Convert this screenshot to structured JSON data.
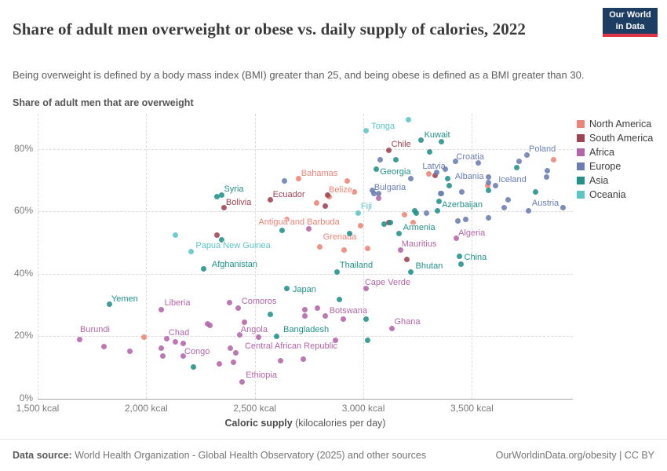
{
  "header": {
    "title": "Share of adult men overweight or obese vs. daily supply of calories, 2022",
    "subtitle": "Being overweight is defined by a body mass index (BMI) greater than 25, and being obese is defined as a BMI greater than 30.",
    "logo_line1": "Our World",
    "logo_line2": "in Data"
  },
  "axis": {
    "y_title": "Share of adult men that are overweight",
    "x_title_bold": "Caloric supply",
    "x_title_rest": " (kilocalories per day)"
  },
  "footer": {
    "source_bold": "Data source:",
    "source_rest": " World Health Organization - Global Health Observatory (2025) and other sources",
    "link": "OurWorldinData.org/obesity | CC BY"
  },
  "legend": [
    {
      "label": "North America",
      "color": "#ec8475"
    },
    {
      "label": "South America",
      "color": "#9e4351"
    },
    {
      "label": "Africa",
      "color": "#b465a8"
    },
    {
      "label": "Europe",
      "color": "#6a7cb2"
    },
    {
      "label": "Asia",
      "color": "#21918a"
    },
    {
      "label": "Oceania",
      "color": "#5cc5c6"
    }
  ],
  "chart_data": {
    "type": "scatter",
    "title": "Share of adult men overweight or obese vs. daily supply of calories, 2022",
    "xlabel": "Caloric supply (kilocalories per day)",
    "ylabel": "Share of adult men that are overweight",
    "x_unit": "kcal",
    "y_unit": "%",
    "xlim": [
      1500,
      3970
    ],
    "ylim": [
      0,
      91
    ],
    "grid": true,
    "legend_position": "right",
    "x_ticks": [
      {
        "label": "1,500 kcal",
        "kcal": 1500
      },
      {
        "label": "2,000 kcal",
        "kcal": 2000
      },
      {
        "label": "2,500 kcal",
        "kcal": 2500
      },
      {
        "label": "3,000 kcal",
        "kcal": 3000
      },
      {
        "label": "3,500 kcal",
        "kcal": 3500
      }
    ],
    "y_ticks": [
      {
        "label": "0%",
        "pct": 0
      },
      {
        "label": "20%",
        "pct": 20
      },
      {
        "label": "40%",
        "pct": 40
      },
      {
        "label": "60%",
        "pct": 60
      },
      {
        "label": "80%",
        "pct": 80
      }
    ],
    "series": [
      {
        "name": "North America",
        "color": "#ec8475",
        "points": [
          {
            "country": "Bahamas",
            "kcal": 2700,
            "pct": 70.4,
            "dx": 27,
            "dy": -7
          },
          {
            "country": "Belize",
            "kcal": 2960,
            "pct": 66.1,
            "dx": -18,
            "dy": -3
          },
          {
            "country": "Antigua and Barbuda",
            "kcal": 2646,
            "pct": 57.3,
            "dx": 16,
            "dy": 3
          },
          {
            "country": "Grenada",
            "kcal": 2801,
            "pct": 48.7,
            "dx": 25,
            "dy": -12
          },
          {
            "kcal": 3878,
            "pct": 76.6
          },
          {
            "kcal": 3574,
            "pct": 68.1
          },
          {
            "kcal": 3300,
            "pct": 71.9
          },
          {
            "kcal": 3191,
            "pct": 59.0
          },
          {
            "kcal": 3228,
            "pct": 56.5
          },
          {
            "kcal": 2986,
            "pct": 55.3
          },
          {
            "kcal": 2913,
            "pct": 47.5
          },
          {
            "kcal": 2783,
            "pct": 62.8
          },
          {
            "kcal": 1988,
            "pct": 19.6
          },
          {
            "kcal": 2841,
            "pct": 64.6
          },
          {
            "kcal": 2924,
            "pct": 69.8
          },
          {
            "kcal": 3018,
            "pct": 48.0
          }
        ]
      },
      {
        "name": "South America",
        "color": "#9e4351",
        "points": [
          {
            "country": "Chile",
            "kcal": 3116,
            "pct": 79.6,
            "dx": 16,
            "dy": -7
          },
          {
            "country": "Ecuador",
            "kcal": 2570,
            "pct": 63.8,
            "dx": 24,
            "dy": -6
          },
          {
            "country": "Bolivia",
            "kcal": 2357,
            "pct": 61.3,
            "dx": 19,
            "dy": -6
          },
          {
            "kcal": 2834,
            "pct": 65.1
          },
          {
            "kcal": 2826,
            "pct": 61.8
          },
          {
            "kcal": 3119,
            "pct": 56.5
          },
          {
            "kcal": 3202,
            "pct": 44.5
          },
          {
            "kcal": 3329,
            "pct": 71.6
          },
          {
            "kcal": 2324,
            "pct": 52.5
          }
        ]
      },
      {
        "name": "Africa",
        "color": "#b465a8",
        "points": [
          {
            "country": "Algeria",
            "kcal": 3427,
            "pct": 51.3,
            "dx": 20,
            "dy": -7
          },
          {
            "country": "Mauritius",
            "kcal": 3170,
            "pct": 47.5,
            "dx": 24,
            "dy": -8
          },
          {
            "country": "Cape Verde",
            "kcal": 3014,
            "pct": 35.2,
            "dx": 27,
            "dy": -8
          },
          {
            "country": "Ghana",
            "kcal": 3130,
            "pct": 22.6,
            "dx": 20,
            "dy": -8
          },
          {
            "country": "Botswana",
            "kcal": 2909,
            "pct": 25.4,
            "dx": 6,
            "dy": -11
          },
          {
            "country": "Comoros",
            "kcal": 2422,
            "pct": 28.9,
            "dx": 27,
            "dy": -9
          },
          {
            "country": "Liberia",
            "kcal": 2071,
            "pct": 28.6,
            "dx": 20,
            "dy": -8
          },
          {
            "country": "Chad",
            "kcal": 2093,
            "pct": 19.1,
            "dx": 16,
            "dy": -8
          },
          {
            "country": "Burundi",
            "kcal": 1695,
            "pct": 18.9,
            "dx": 19,
            "dy": -13
          },
          {
            "country": "Congo",
            "kcal": 2169,
            "pct": 13.6,
            "dx": 18,
            "dy": -6
          },
          {
            "country": "Angola",
            "kcal": 2432,
            "pct": 20.4,
            "dx": 18,
            "dy": -7
          },
          {
            "country": "Central African Republic",
            "kcal": 2389,
            "pct": 16.3,
            "dx": 77,
            "dy": -2
          },
          {
            "country": "Ethiopia",
            "kcal": 2440,
            "pct": 5.3,
            "dx": 25,
            "dy": -9
          },
          {
            "kcal": 1804,
            "pct": 16.8
          },
          {
            "kcal": 1923,
            "pct": 15.1
          },
          {
            "kcal": 2071,
            "pct": 16.3
          },
          {
            "kcal": 2075,
            "pct": 13.8
          },
          {
            "kcal": 2136,
            "pct": 18.1
          },
          {
            "kcal": 2172,
            "pct": 17.8
          },
          {
            "kcal": 2284,
            "pct": 24.1
          },
          {
            "kcal": 2292,
            "pct": 23.6
          },
          {
            "kcal": 2335,
            "pct": 11.3
          },
          {
            "kcal": 2400,
            "pct": 11.8
          },
          {
            "kcal": 2620,
            "pct": 12.3
          },
          {
            "kcal": 2722,
            "pct": 12.6
          },
          {
            "kcal": 2873,
            "pct": 18.8
          },
          {
            "kcal": 2732,
            "pct": 28.6
          },
          {
            "kcal": 2732,
            "pct": 26.4
          },
          {
            "kcal": 2790,
            "pct": 28.9
          },
          {
            "kcal": 2823,
            "pct": 26.4
          },
          {
            "kcal": 2411,
            "pct": 14.6
          },
          {
            "kcal": 2385,
            "pct": 30.7
          },
          {
            "kcal": 2454,
            "pct": 24.6
          },
          {
            "kcal": 2519,
            "pct": 19.8
          },
          {
            "kcal": 2747,
            "pct": 54.3
          },
          {
            "kcal": 3069,
            "pct": 64.1
          }
        ]
      },
      {
        "name": "Europe",
        "color": "#6a7cb2",
        "points": [
          {
            "country": "Poland",
            "kcal": 3752,
            "pct": 78.1,
            "dx": 20,
            "dy": -7
          },
          {
            "country": "Croatia",
            "kcal": 3528,
            "pct": 75.4,
            "dx": -10,
            "dy": -8
          },
          {
            "country": "Latvia",
            "kcal": 3336,
            "pct": 72.4,
            "dx": -3,
            "dy": -8
          },
          {
            "country": "Albania",
            "kcal": 3575,
            "pct": 70.9,
            "dx": -24,
            "dy": -1
          },
          {
            "country": "Iceland",
            "kcal": 3578,
            "pct": 69.1,
            "dx": 30,
            "dy": -4
          },
          {
            "country": "Bulgaria",
            "kcal": 3072,
            "pct": 65.6,
            "dx": 14,
            "dy": -8
          },
          {
            "country": "Austria",
            "kcal": 3918,
            "pct": 61.1,
            "dx": -22,
            "dy": -6
          },
          {
            "kcal": 3719,
            "pct": 76.1
          },
          {
            "kcal": 3846,
            "pct": 73.1
          },
          {
            "kcal": 3842,
            "pct": 70.9
          },
          {
            "kcal": 3379,
            "pct": 73.4
          },
          {
            "kcal": 3423,
            "pct": 75.9
          },
          {
            "kcal": 3079,
            "pct": 76.6
          },
          {
            "kcal": 3043,
            "pct": 66.8
          },
          {
            "kcal": 3047,
            "pct": 65.6
          },
          {
            "kcal": 3220,
            "pct": 70.4
          },
          {
            "kcal": 3354,
            "pct": 65.6
          },
          {
            "kcal": 3361,
            "pct": 65.8
          },
          {
            "kcal": 3455,
            "pct": 66.3
          },
          {
            "kcal": 3434,
            "pct": 56.8
          },
          {
            "kcal": 3470,
            "pct": 57.5
          },
          {
            "kcal": 3578,
            "pct": 58.0
          },
          {
            "kcal": 3665,
            "pct": 63.6
          },
          {
            "kcal": 3647,
            "pct": 61.3
          },
          {
            "kcal": 3759,
            "pct": 60.3
          },
          {
            "kcal": 3289,
            "pct": 59.3
          },
          {
            "kcal": 2635,
            "pct": 69.8
          },
          {
            "kcal": 3607,
            "pct": 68.1
          }
        ]
      },
      {
        "name": "Asia",
        "color": "#21918a",
        "points": [
          {
            "country": "Kuwait",
            "kcal": 3358,
            "pct": 82.4,
            "dx": -5,
            "dy": -8
          },
          {
            "country": "Georgia",
            "kcal": 3061,
            "pct": 73.4,
            "dx": 24,
            "dy": 3
          },
          {
            "country": "Azerbaijan",
            "kcal": 3347,
            "pct": 63.1,
            "dx": 30,
            "dy": 4
          },
          {
            "country": "Armenia",
            "kcal": 3163,
            "pct": 53.0,
            "dx": 26,
            "dy": -7
          },
          {
            "country": "Syria",
            "kcal": 2324,
            "pct": 64.6,
            "dx": 22,
            "dy": -10
          },
          {
            "country": "China",
            "kcal": 3444,
            "pct": 45.5,
            "dx": 20,
            "dy": 1
          },
          {
            "country": "Bhutan",
            "kcal": 3220,
            "pct": 40.5,
            "dx": 23,
            "dy": -8
          },
          {
            "country": "Thailand",
            "kcal": 2877,
            "pct": 40.5,
            "dx": 25,
            "dy": -9
          },
          {
            "country": "Afghanistan",
            "kcal": 2266,
            "pct": 41.5,
            "dx": 39,
            "dy": -6
          },
          {
            "country": "Japan",
            "kcal": 2649,
            "pct": 35.2,
            "dx": 22,
            "dy": 1
          },
          {
            "country": "Bangladesh",
            "kcal": 2599,
            "pct": 20.1,
            "dx": 38,
            "dy": -8
          },
          {
            "country": "Yemen",
            "kcal": 1832,
            "pct": 30.2,
            "dx": 19,
            "dy": -7
          },
          {
            "kcal": 3264,
            "pct": 82.7
          },
          {
            "kcal": 3304,
            "pct": 79.1
          },
          {
            "kcal": 3148,
            "pct": 76.4
          },
          {
            "kcal": 2346,
            "pct": 65.1
          },
          {
            "kcal": 3242,
            "pct": 59.5
          },
          {
            "kcal": 3123,
            "pct": 56.5
          },
          {
            "kcal": 3097,
            "pct": 56.0
          },
          {
            "kcal": 3387,
            "pct": 70.4
          },
          {
            "kcal": 3397,
            "pct": 68.1
          },
          {
            "kcal": 3340,
            "pct": 60.3
          },
          {
            "kcal": 3238,
            "pct": 60.1
          },
          {
            "kcal": 3705,
            "pct": 74.1
          },
          {
            "kcal": 3792,
            "pct": 66.1
          },
          {
            "kcal": 3578,
            "pct": 66.6
          },
          {
            "kcal": 3448,
            "pct": 43.0
          },
          {
            "kcal": 3011,
            "pct": 25.6
          },
          {
            "kcal": 3018,
            "pct": 18.8
          },
          {
            "kcal": 2219,
            "pct": 10.1
          },
          {
            "kcal": 2888,
            "pct": 31.9
          },
          {
            "kcal": 2573,
            "pct": 27.1
          },
          {
            "kcal": 2624,
            "pct": 54.0
          },
          {
            "kcal": 2935,
            "pct": 52.8
          },
          {
            "kcal": 2349,
            "pct": 50.8
          }
        ]
      },
      {
        "name": "Oceania",
        "color": "#5cc5c6",
        "points": [
          {
            "country": "Tonga",
            "kcal": 3011,
            "pct": 85.9,
            "dx": 22,
            "dy": -5
          },
          {
            "country": "Fiji",
            "kcal": 2978,
            "pct": 59.5,
            "dx": 10,
            "dy": -8
          },
          {
            "country": "Papua New Guinea",
            "kcal": 2205,
            "pct": 47.2,
            "dx": 54,
            "dy": -7
          },
          {
            "kcal": 3206,
            "pct": 89.4
          },
          {
            "kcal": 2136,
            "pct": 52.3
          }
        ]
      }
    ]
  }
}
